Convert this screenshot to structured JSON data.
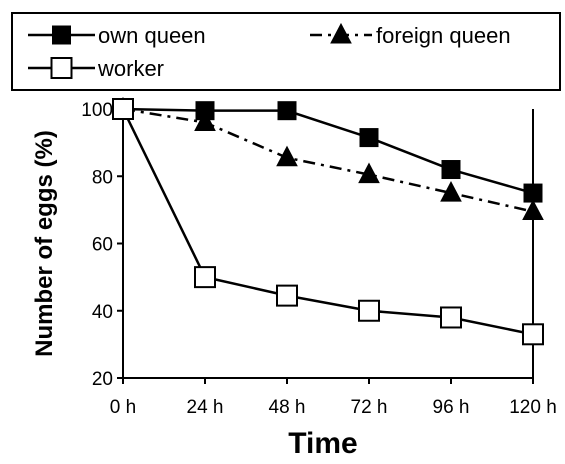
{
  "chart_data": {
    "type": "line",
    "categories": [
      "0 h",
      "24 h",
      "48 h",
      "72 h",
      "96 h",
      "120 h"
    ],
    "series": [
      {
        "name": "own queen",
        "marker": "square-filled",
        "line": "solid",
        "values": [
          100,
          99.5,
          99.5,
          91.5,
          82,
          75
        ]
      },
      {
        "name": "foreign queen",
        "marker": "triangle-filled",
        "line": "dash-dot",
        "values": [
          100,
          96,
          85.5,
          80.5,
          75,
          69.5
        ]
      },
      {
        "name": "worker",
        "marker": "square-open",
        "line": "solid",
        "values": [
          100,
          50,
          44.5,
          40,
          38,
          33
        ]
      }
    ],
    "xlabel": "Time",
    "ylabel": "Number of eggs (%)",
    "ylim": [
      20,
      100
    ],
    "yticks": [
      20,
      40,
      60,
      80,
      100
    ],
    "grid": false,
    "legend_position": "top",
    "colors": {
      "line": "#000000",
      "marker_fill": "#000000",
      "open_marker_fill": "#ffffff"
    }
  }
}
